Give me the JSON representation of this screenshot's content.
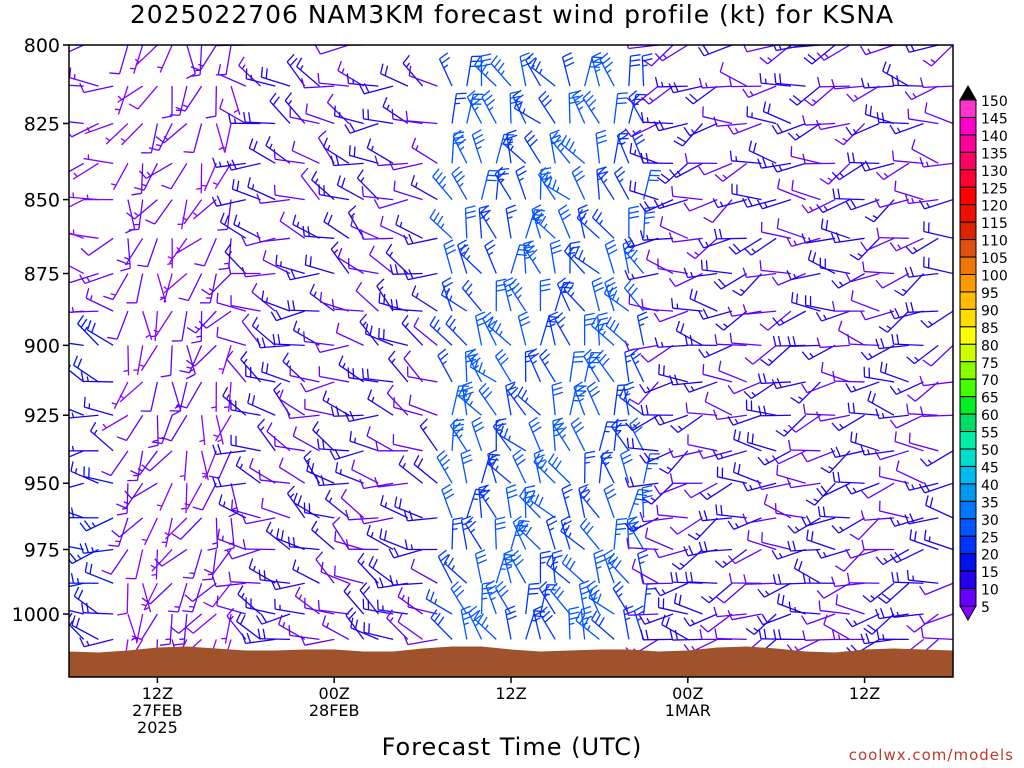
{
  "title": "2025022706 NAM3KM forecast wind profile (kt) for KSNA",
  "xaxis_title": "Forecast Time (UTC)",
  "credit": "coolwx.com/models",
  "chart_data": {
    "type": "wind_barb_time_height",
    "title": "2025022706 NAM3KM forecast wind profile (kt) for KSNA",
    "xlabel": "Forecast Time (UTC)",
    "ylabel": "",
    "yaxis": {
      "scale": "log-pressure",
      "inverted": true,
      "range_hpa": [
        1025,
        800
      ],
      "ticks": [
        "800",
        "825",
        "850",
        "875",
        "900",
        "925",
        "950",
        "975",
        "1000"
      ]
    },
    "xaxis": {
      "range_hours": [
        0,
        60
      ],
      "ticks": [
        {
          "hour": 6,
          "lines": [
            "12Z",
            "27FEB",
            "2025"
          ]
        },
        {
          "hour": 18,
          "lines": [
            "00Z",
            "28FEB"
          ]
        },
        {
          "hour": 30,
          "lines": [
            "12Z"
          ]
        },
        {
          "hour": 42,
          "lines": [
            "00Z",
            "1MAR"
          ]
        },
        {
          "hour": 54,
          "lines": [
            "12Z"
          ]
        }
      ]
    },
    "colorbar": {
      "labels": [
        "150",
        "145",
        "140",
        "135",
        "130",
        "125",
        "120",
        "115",
        "110",
        "105",
        "100",
        "95",
        "90",
        "85",
        "80",
        "75",
        "70",
        "65",
        "60",
        "55",
        "50",
        "45",
        "40",
        "35",
        "30",
        "25",
        "20",
        "15",
        "10",
        "5"
      ],
      "colors": [
        "#ff33cc",
        "#ff00cc",
        "#ff0099",
        "#ff0066",
        "#ff0033",
        "#ff0000",
        "#ee1100",
        "#dd2200",
        "#e05010",
        "#ee7700",
        "#ff9900",
        "#ffbb00",
        "#ffdd00",
        "#ffff00",
        "#ccff00",
        "#88ff00",
        "#44ff00",
        "#00ee22",
        "#00dd66",
        "#00eeaa",
        "#00ddcc",
        "#00bbee",
        "#0099ee",
        "#0077ff",
        "#0055ff",
        "#0033ff",
        "#0011ee",
        "#2200ee",
        "#6600ff",
        "#8800ff"
      ]
    },
    "terrain_color": "#a0522d",
    "terrain_top_hpa": 1014,
    "levels_hpa": [
      800,
      813,
      825,
      838,
      850,
      863,
      875,
      888,
      900,
      913,
      925,
      938,
      950,
      963,
      975,
      988,
      1000,
      1010
    ],
    "time_steps_hours": [
      0,
      1,
      2,
      3,
      4,
      5,
      6,
      7,
      8,
      9,
      10,
      11,
      12,
      13,
      14,
      15,
      16,
      17,
      18,
      19,
      20,
      21,
      22,
      23,
      24,
      25,
      26,
      27,
      28,
      29,
      30,
      31,
      32,
      33,
      34,
      35,
      36,
      37,
      38,
      39,
      40,
      41,
      42,
      43,
      44,
      45,
      46,
      47,
      48,
      49,
      50,
      51,
      52,
      53,
      54,
      55,
      56,
      57,
      58,
      59,
      60
    ],
    "wind_regimes": [
      {
        "hours": [
          0,
          4
        ],
        "low_levels_dir_deg": 280,
        "low_levels_speed_kt": 20,
        "upper_dir_deg": 270,
        "upper_speed_kt": 10
      },
      {
        "hours": [
          4,
          12
        ],
        "dir_deg": 200,
        "speed_kt": 10
      },
      {
        "hours": [
          12,
          26
        ],
        "dir_deg": 290,
        "speed_kt": 15
      },
      {
        "hours": [
          26,
          40
        ],
        "dir_deg": 340,
        "speed_kt": 30
      },
      {
        "hours": [
          40,
          60
        ],
        "dir_deg": 260,
        "speed_kt": 15
      }
    ]
  }
}
